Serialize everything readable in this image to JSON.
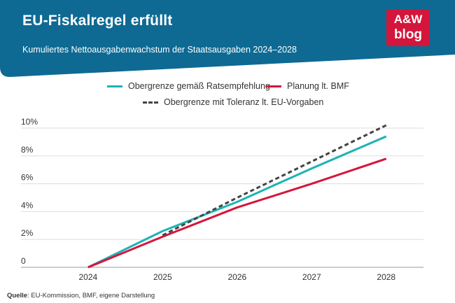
{
  "header": {
    "title": "EU-Fiskalregel erfüllt",
    "subtitle": "Kumuliertes Nettoausgabenwachstum der Staatsausgaben 2024–2028",
    "logo_line1": "A&W",
    "logo_line2": "blog"
  },
  "colors": {
    "banner": "#0e6a93",
    "accent": "#d4163c",
    "cyan": "#1fb3b5",
    "dash": "#444444"
  },
  "legend": [
    {
      "label": "Obergrenze gemäß Ratsempfehlung",
      "style": "solid",
      "color": "#1fb3b5"
    },
    {
      "label": "Planung lt. BMF",
      "style": "solid",
      "color": "#d4163c"
    },
    {
      "label": "Obergrenze mit Toleranz lt. EU-Vorgaben",
      "style": "dashed",
      "color": "#444444"
    }
  ],
  "chart_data": {
    "type": "line",
    "x": [
      2024,
      2025,
      2026,
      2027,
      2028
    ],
    "xticklabels": [
      "2024",
      "2025",
      "2026",
      "2027",
      "2028"
    ],
    "yticklabels": [
      "0",
      "2%",
      "4%",
      "6%",
      "8%",
      "10%"
    ],
    "yticks": [
      0,
      2,
      4,
      6,
      8,
      10
    ],
    "ylim": [
      0,
      10
    ],
    "xlim": [
      2023.1,
      2028.5
    ],
    "grid": "horizontal",
    "legend_position": "top",
    "series": [
      {
        "name": "Obergrenze gemäß Ratsempfehlung",
        "x": [
          2024,
          2025,
          2026,
          2027,
          2028
        ],
        "values": [
          0,
          2.6,
          4.7,
          7.1,
          9.4
        ],
        "color": "#1fb3b5",
        "dash": false
      },
      {
        "name": "Planung lt. BMF",
        "x": [
          2024,
          2025,
          2026,
          2027,
          2028
        ],
        "values": [
          0,
          2.2,
          4.3,
          6.0,
          7.8
        ],
        "color": "#d4163c",
        "dash": false
      },
      {
        "name": "Obergrenze mit Toleranz lt. EU-Vorgaben",
        "x": [
          2025,
          2026,
          2027,
          2028
        ],
        "values": [
          2.3,
          5.0,
          7.6,
          10.2
        ],
        "color": "#444444",
        "dash": true
      }
    ]
  },
  "source": {
    "label": "Quelle",
    "text": ": EU-Kommission, BMF, eigene Darstellung"
  }
}
